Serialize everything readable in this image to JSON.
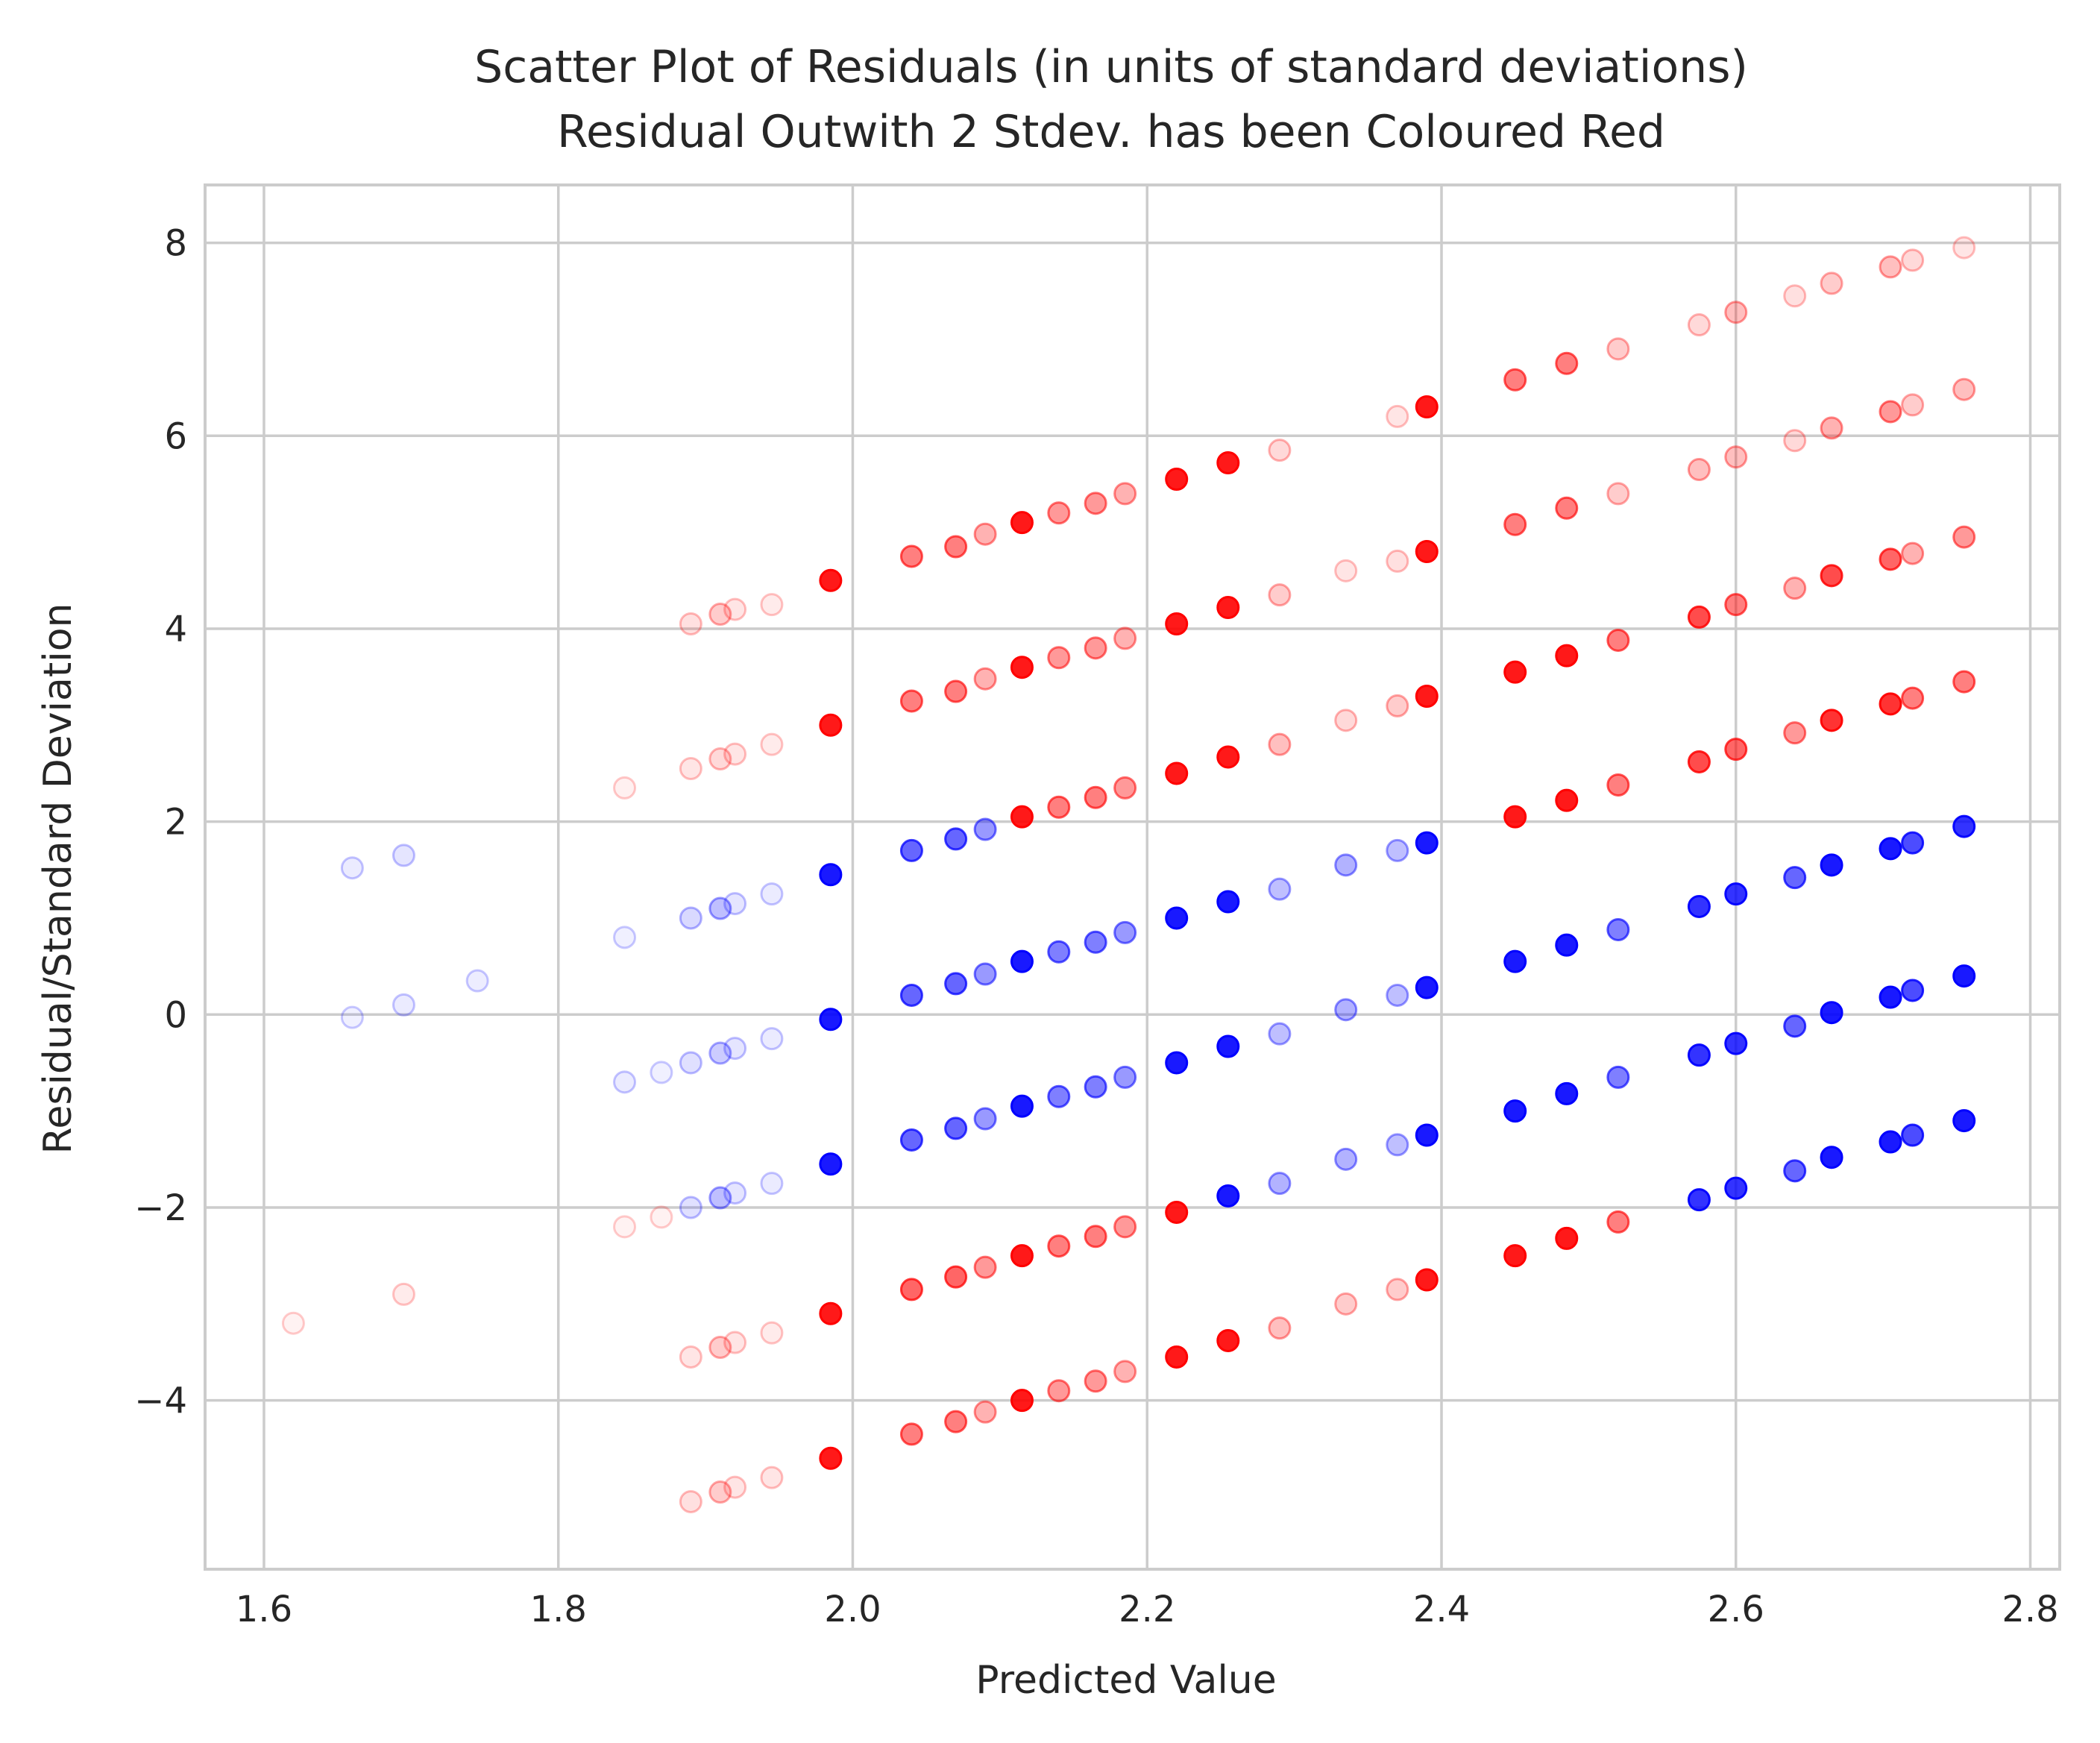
{
  "chart_data": {
    "type": "scatter",
    "title_lines": [
      "Scatter Plot of Residuals (in units of standard deviations)",
      "Residual Outwith 2 Stdev. has been Coloured Red"
    ],
    "xlabel": "Predicted Value",
    "ylabel": "Residual/Standard Deviation",
    "xlim": [
      1.56,
      2.82
    ],
    "ylim": [
      -5.75,
      8.6
    ],
    "xticks": [
      1.6,
      1.8,
      2.0,
      2.2,
      2.4,
      2.6,
      2.8
    ],
    "xtick_labels": [
      "1.6",
      "1.8",
      "2.0",
      "2.2",
      "2.4",
      "2.6",
      "2.8"
    ],
    "yticks": [
      -4,
      -2,
      0,
      2,
      4,
      6,
      8
    ],
    "ytick_labels": [
      "−4",
      "−2",
      "0",
      "2",
      "4",
      "6",
      "8"
    ],
    "grid": true,
    "threshold": 2,
    "colors": {
      "inside": "#0000ff",
      "outside": "#ff0000",
      "grid": "#cccccc",
      "spine": "#cccccc",
      "text": "#262626"
    },
    "series": [
      {
        "points": [
          [
            1.62,
            -3.2,
            0.05
          ],
          [
            1.66,
            1.52,
            0.08
          ],
          [
            1.66,
            -0.03,
            0.06
          ],
          [
            1.695,
            1.65,
            0.1
          ],
          [
            1.695,
            0.1,
            0.08
          ],
          [
            1.695,
            -2.9,
            0.08
          ],
          [
            1.745,
            0.35,
            0.07
          ],
          [
            1.845,
            2.35,
            0.06
          ],
          [
            1.845,
            0.8,
            0.06
          ],
          [
            1.845,
            -0.7,
            0.08
          ],
          [
            1.845,
            -2.2,
            0.05
          ],
          [
            1.87,
            -0.6,
            0.06
          ],
          [
            1.87,
            -2.1,
            0.05
          ],
          [
            1.89,
            4.05,
            0.12
          ],
          [
            1.89,
            2.55,
            0.1
          ],
          [
            1.89,
            1.0,
            0.15
          ],
          [
            1.89,
            -0.5,
            0.12
          ],
          [
            1.89,
            -2.0,
            0.12
          ],
          [
            1.89,
            -3.55,
            0.1
          ],
          [
            1.89,
            -5.05,
            0.12
          ],
          [
            1.91,
            4.15,
            0.2
          ],
          [
            1.91,
            2.65,
            0.15
          ],
          [
            1.91,
            1.1,
            0.25
          ],
          [
            1.91,
            -0.4,
            0.2
          ],
          [
            1.91,
            -1.9,
            0.25
          ],
          [
            1.91,
            -3.45,
            0.2
          ],
          [
            1.91,
            -4.95,
            0.2
          ],
          [
            1.92,
            4.2,
            0.1
          ],
          [
            1.92,
            2.7,
            0.1
          ],
          [
            1.92,
            1.15,
            0.1
          ],
          [
            1.92,
            -0.35,
            0.1
          ],
          [
            1.92,
            -1.85,
            0.1
          ],
          [
            1.92,
            -3.4,
            0.1
          ],
          [
            1.92,
            -4.9,
            0.1
          ],
          [
            1.945,
            4.25,
            0.08
          ],
          [
            1.945,
            2.8,
            0.08
          ],
          [
            1.945,
            1.25,
            0.08
          ],
          [
            1.945,
            -0.25,
            0.08
          ],
          [
            1.945,
            -1.75,
            0.08
          ],
          [
            1.945,
            -3.3,
            0.08
          ],
          [
            1.945,
            -4.8,
            0.1
          ],
          [
            1.985,
            4.5,
            0.9
          ],
          [
            1.985,
            3.0,
            0.9
          ],
          [
            1.985,
            1.45,
            0.9
          ],
          [
            1.985,
            -0.05,
            0.9
          ],
          [
            1.985,
            -1.55,
            0.9
          ],
          [
            1.985,
            -3.1,
            0.9
          ],
          [
            1.985,
            -4.6,
            0.9
          ],
          [
            2.04,
            4.75,
            0.5
          ],
          [
            2.04,
            3.25,
            0.5
          ],
          [
            2.04,
            1.7,
            0.6
          ],
          [
            2.04,
            0.2,
            0.6
          ],
          [
            2.04,
            -1.3,
            0.6
          ],
          [
            2.04,
            -2.85,
            0.6
          ],
          [
            2.04,
            -4.35,
            0.5
          ],
          [
            2.07,
            4.85,
            0.5
          ],
          [
            2.07,
            3.35,
            0.5
          ],
          [
            2.07,
            1.82,
            0.6
          ],
          [
            2.07,
            0.32,
            0.6
          ],
          [
            2.07,
            -1.18,
            0.6
          ],
          [
            2.07,
            -2.72,
            0.6
          ],
          [
            2.07,
            -4.22,
            0.5
          ],
          [
            2.09,
            4.98,
            0.3
          ],
          [
            2.09,
            3.48,
            0.3
          ],
          [
            2.09,
            1.92,
            0.4
          ],
          [
            2.09,
            0.42,
            0.4
          ],
          [
            2.09,
            -1.08,
            0.4
          ],
          [
            2.09,
            -2.62,
            0.4
          ],
          [
            2.09,
            -4.12,
            0.3
          ],
          [
            2.115,
            5.1,
            0.9
          ],
          [
            2.115,
            3.6,
            0.9
          ],
          [
            2.115,
            2.05,
            0.9
          ],
          [
            2.115,
            0.55,
            0.9
          ],
          [
            2.115,
            -0.95,
            0.9
          ],
          [
            2.115,
            -2.5,
            0.9
          ],
          [
            2.115,
            -4.0,
            0.9
          ],
          [
            2.14,
            5.2,
            0.4
          ],
          [
            2.14,
            3.7,
            0.4
          ],
          [
            2.14,
            2.15,
            0.5
          ],
          [
            2.14,
            0.65,
            0.5
          ],
          [
            2.14,
            -0.85,
            0.5
          ],
          [
            2.14,
            -2.4,
            0.5
          ],
          [
            2.14,
            -3.9,
            0.4
          ],
          [
            2.165,
            5.3,
            0.4
          ],
          [
            2.165,
            3.8,
            0.4
          ],
          [
            2.165,
            2.25,
            0.5
          ],
          [
            2.165,
            0.75,
            0.5
          ],
          [
            2.165,
            -0.75,
            0.5
          ],
          [
            2.165,
            -2.3,
            0.5
          ],
          [
            2.165,
            -3.8,
            0.4
          ],
          [
            2.185,
            5.4,
            0.3
          ],
          [
            2.185,
            3.9,
            0.3
          ],
          [
            2.185,
            2.35,
            0.4
          ],
          [
            2.185,
            0.85,
            0.4
          ],
          [
            2.185,
            -0.65,
            0.4
          ],
          [
            2.185,
            -2.2,
            0.4
          ],
          [
            2.185,
            -3.7,
            0.3
          ],
          [
            2.22,
            5.55,
            0.9
          ],
          [
            2.22,
            4.05,
            0.9
          ],
          [
            2.22,
            2.5,
            0.9
          ],
          [
            2.22,
            1.0,
            0.9
          ],
          [
            2.22,
            -0.5,
            0.9
          ],
          [
            2.22,
            -2.05,
            0.9
          ],
          [
            2.22,
            -3.55,
            0.9
          ],
          [
            2.255,
            5.72,
            0.9
          ],
          [
            2.255,
            4.22,
            0.9
          ],
          [
            2.255,
            2.67,
            0.9
          ],
          [
            2.255,
            1.17,
            0.9
          ],
          [
            2.255,
            -0.33,
            0.9
          ],
          [
            2.255,
            -1.88,
            0.9
          ],
          [
            2.255,
            -3.38,
            0.9
          ],
          [
            2.29,
            5.85,
            0.15
          ],
          [
            2.29,
            4.35,
            0.2
          ],
          [
            2.29,
            2.8,
            0.25
          ],
          [
            2.29,
            1.3,
            0.25
          ],
          [
            2.29,
            -0.2,
            0.25
          ],
          [
            2.29,
            -1.75,
            0.3
          ],
          [
            2.29,
            -3.25,
            0.25
          ],
          [
            2.335,
            4.6,
            0.1
          ],
          [
            2.335,
            3.05,
            0.15
          ],
          [
            2.335,
            1.55,
            0.3
          ],
          [
            2.335,
            0.05,
            0.3
          ],
          [
            2.335,
            -1.5,
            0.3
          ],
          [
            2.335,
            -3.0,
            0.2
          ],
          [
            2.37,
            6.2,
            0.1
          ],
          [
            2.37,
            4.7,
            0.12
          ],
          [
            2.37,
            3.2,
            0.2
          ],
          [
            2.37,
            1.7,
            0.25
          ],
          [
            2.37,
            0.2,
            0.25
          ],
          [
            2.37,
            -1.35,
            0.25
          ],
          [
            2.37,
            -2.85,
            0.2
          ],
          [
            2.39,
            6.3,
            0.9
          ],
          [
            2.39,
            4.8,
            0.9
          ],
          [
            2.39,
            3.3,
            0.9
          ],
          [
            2.39,
            1.78,
            0.9
          ],
          [
            2.39,
            0.28,
            0.9
          ],
          [
            2.39,
            -1.25,
            0.9
          ],
          [
            2.39,
            -2.75,
            0.9
          ],
          [
            2.45,
            6.58,
            0.5
          ],
          [
            2.45,
            5.08,
            0.5
          ],
          [
            2.45,
            3.55,
            0.9
          ],
          [
            2.45,
            2.05,
            0.9
          ],
          [
            2.45,
            0.55,
            0.9
          ],
          [
            2.45,
            -1.0,
            0.9
          ],
          [
            2.45,
            -2.5,
            0.9
          ],
          [
            2.485,
            6.75,
            0.5
          ],
          [
            2.485,
            5.25,
            0.5
          ],
          [
            2.485,
            3.72,
            0.9
          ],
          [
            2.485,
            2.22,
            0.9
          ],
          [
            2.485,
            0.72,
            0.9
          ],
          [
            2.485,
            -0.82,
            0.9
          ],
          [
            2.485,
            -2.32,
            0.9
          ],
          [
            2.52,
            6.9,
            0.2
          ],
          [
            2.52,
            5.4,
            0.2
          ],
          [
            2.52,
            3.88,
            0.5
          ],
          [
            2.52,
            2.38,
            0.5
          ],
          [
            2.52,
            0.88,
            0.5
          ],
          [
            2.52,
            -0.65,
            0.5
          ],
          [
            2.52,
            -2.15,
            0.5
          ],
          [
            2.575,
            7.15,
            0.15
          ],
          [
            2.575,
            5.65,
            0.25
          ],
          [
            2.575,
            4.12,
            0.7
          ],
          [
            2.575,
            2.62,
            0.7
          ],
          [
            2.575,
            1.12,
            0.8
          ],
          [
            2.575,
            -0.42,
            0.8
          ],
          [
            2.575,
            -1.92,
            0.8
          ],
          [
            2.6,
            7.28,
            0.25
          ],
          [
            2.6,
            5.78,
            0.25
          ],
          [
            2.6,
            4.25,
            0.5
          ],
          [
            2.6,
            2.75,
            0.6
          ],
          [
            2.6,
            1.25,
            0.8
          ],
          [
            2.6,
            -0.3,
            0.8
          ],
          [
            2.6,
            -1.8,
            0.8
          ],
          [
            2.64,
            7.45,
            0.12
          ],
          [
            2.64,
            5.95,
            0.15
          ],
          [
            2.64,
            4.42,
            0.3
          ],
          [
            2.64,
            2.92,
            0.4
          ],
          [
            2.64,
            1.42,
            0.6
          ],
          [
            2.64,
            -0.12,
            0.6
          ],
          [
            2.64,
            -1.62,
            0.6
          ],
          [
            2.665,
            7.58,
            0.2
          ],
          [
            2.665,
            6.08,
            0.3
          ],
          [
            2.665,
            4.55,
            0.7
          ],
          [
            2.665,
            3.05,
            0.8
          ],
          [
            2.665,
            1.55,
            0.9
          ],
          [
            2.665,
            0.02,
            0.9
          ],
          [
            2.665,
            -1.48,
            0.9
          ],
          [
            2.705,
            7.75,
            0.25
          ],
          [
            2.705,
            6.25,
            0.4
          ],
          [
            2.705,
            4.72,
            0.6
          ],
          [
            2.705,
            3.22,
            0.8
          ],
          [
            2.705,
            1.72,
            0.9
          ],
          [
            2.705,
            0.18,
            0.9
          ],
          [
            2.705,
            -1.32,
            0.9
          ],
          [
            2.72,
            7.82,
            0.15
          ],
          [
            2.72,
            6.32,
            0.2
          ],
          [
            2.72,
            4.78,
            0.3
          ],
          [
            2.72,
            3.28,
            0.5
          ],
          [
            2.72,
            1.78,
            0.7
          ],
          [
            2.72,
            0.25,
            0.7
          ],
          [
            2.72,
            -1.25,
            0.7
          ],
          [
            2.755,
            7.95,
            0.1
          ],
          [
            2.755,
            6.48,
            0.25
          ],
          [
            2.755,
            4.95,
            0.4
          ],
          [
            2.755,
            3.45,
            0.5
          ],
          [
            2.755,
            1.95,
            0.8
          ],
          [
            2.755,
            0.4,
            0.9
          ],
          [
            2.755,
            -1.1,
            0.9
          ]
        ]
      }
    ]
  }
}
